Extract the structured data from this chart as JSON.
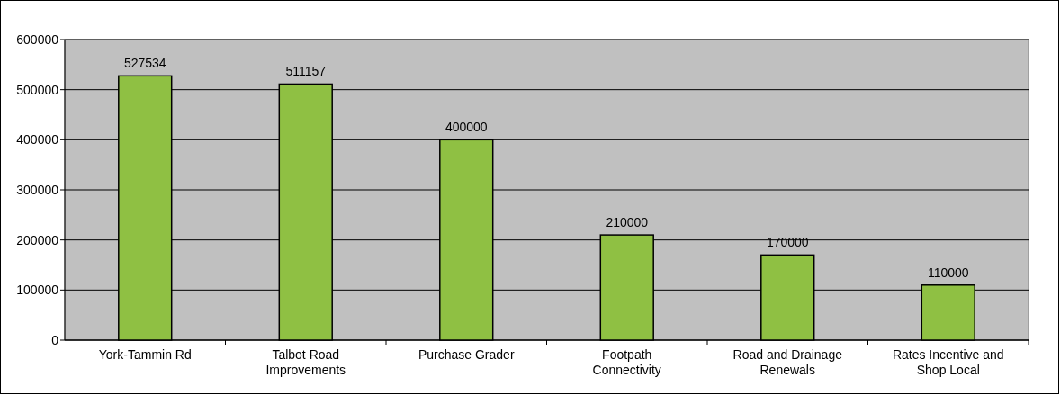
{
  "chart_data": {
    "type": "bar",
    "categories": [
      "York-Tammin Rd",
      "Talbot Road Improvements",
      "Purchase Grader",
      "Footpath Connectivity",
      "Road and Drainage Renewals",
      "Rates Incentive and Shop Local"
    ],
    "values": [
      527534,
      511157,
      400000,
      210000,
      170000,
      110000
    ],
    "color": "#8fc043",
    "ylim": [
      0,
      600000
    ],
    "yticks": [
      0,
      100000,
      200000,
      300000,
      400000,
      500000,
      600000
    ],
    "grid": "y",
    "data_labels": true
  }
}
